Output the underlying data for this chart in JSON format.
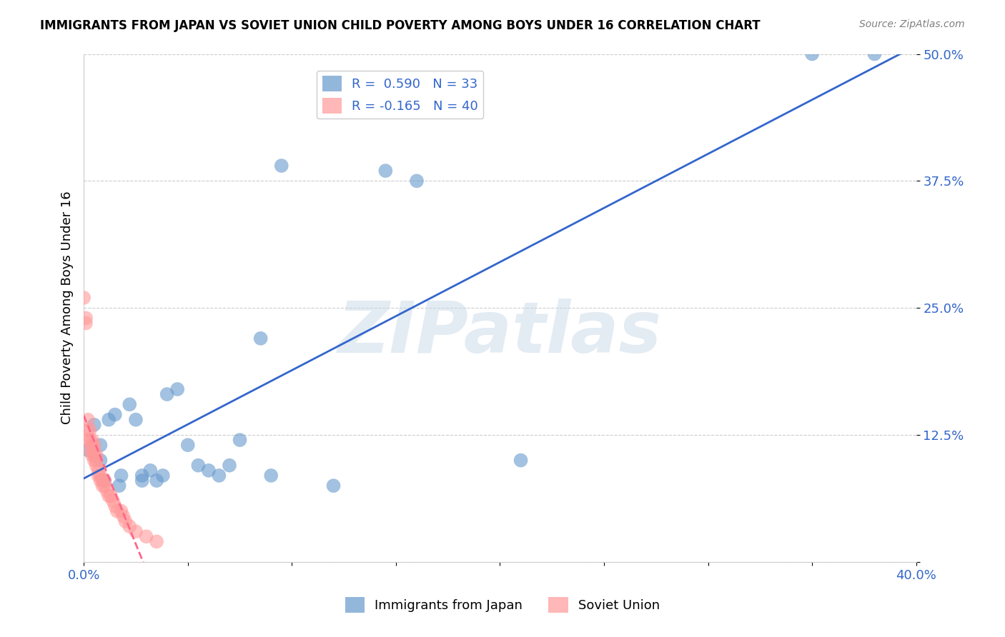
{
  "title": "IMMIGRANTS FROM JAPAN VS SOVIET UNION CHILD POVERTY AMONG BOYS UNDER 16 CORRELATION CHART",
  "source": "Source: ZipAtlas.com",
  "xlabel_bottom": "Immigrants from Japan",
  "ylabel": "Child Poverty Among Boys Under 16",
  "xlim": [
    0,
    0.4
  ],
  "ylim": [
    0,
    0.5
  ],
  "xticks": [
    0.0,
    0.05,
    0.1,
    0.15,
    0.2,
    0.25,
    0.3,
    0.35,
    0.4
  ],
  "xticklabels": [
    "0.0%",
    "",
    "",
    "",
    "",
    "",
    "",
    "",
    "40.0%"
  ],
  "yticks": [
    0.0,
    0.125,
    0.25,
    0.375,
    0.5
  ],
  "yticklabels": [
    "",
    "12.5%",
    "25.0%",
    "37.5%",
    "50.0%"
  ],
  "legend_japan_R": "R =  0.590",
  "legend_japan_N": "N = 33",
  "legend_soviet_R": "R = -0.165",
  "legend_soviet_N": "N = 40",
  "japan_color": "#6699CC",
  "soviet_color": "#FF9999",
  "japan_trend_color": "#3366CC",
  "soviet_trend_color": "#FF6688",
  "watermark": "ZIPatlas",
  "watermark_color": "#C8D8E8",
  "japan_x": [
    0.002,
    0.005,
    0.008,
    0.008,
    0.01,
    0.012,
    0.015,
    0.017,
    0.018,
    0.022,
    0.025,
    0.028,
    0.028,
    0.032,
    0.035,
    0.038,
    0.04,
    0.045,
    0.05,
    0.055,
    0.06,
    0.065,
    0.07,
    0.075,
    0.085,
    0.09,
    0.095,
    0.12,
    0.145,
    0.16,
    0.21,
    0.35,
    0.38
  ],
  "japan_y": [
    0.11,
    0.135,
    0.1,
    0.115,
    0.08,
    0.14,
    0.145,
    0.075,
    0.085,
    0.155,
    0.14,
    0.08,
    0.085,
    0.09,
    0.08,
    0.085,
    0.165,
    0.17,
    0.115,
    0.095,
    0.09,
    0.085,
    0.095,
    0.12,
    0.22,
    0.085,
    0.39,
    0.075,
    0.385,
    0.375,
    0.1,
    0.5,
    0.5
  ],
  "soviet_x": [
    0.0,
    0.001,
    0.001,
    0.002,
    0.002,
    0.002,
    0.003,
    0.003,
    0.003,
    0.004,
    0.004,
    0.004,
    0.005,
    0.005,
    0.005,
    0.005,
    0.006,
    0.006,
    0.006,
    0.007,
    0.007,
    0.008,
    0.008,
    0.009,
    0.009,
    0.01,
    0.01,
    0.011,
    0.012,
    0.013,
    0.014,
    0.015,
    0.016,
    0.018,
    0.019,
    0.02,
    0.022,
    0.025,
    0.03,
    0.035
  ],
  "soviet_y": [
    0.26,
    0.235,
    0.24,
    0.12,
    0.13,
    0.14,
    0.11,
    0.12,
    0.13,
    0.105,
    0.115,
    0.12,
    0.1,
    0.105,
    0.11,
    0.115,
    0.095,
    0.1,
    0.105,
    0.085,
    0.09,
    0.08,
    0.085,
    0.075,
    0.08,
    0.075,
    0.08,
    0.07,
    0.065,
    0.065,
    0.06,
    0.055,
    0.05,
    0.05,
    0.045,
    0.04,
    0.035,
    0.03,
    0.025,
    0.02
  ]
}
